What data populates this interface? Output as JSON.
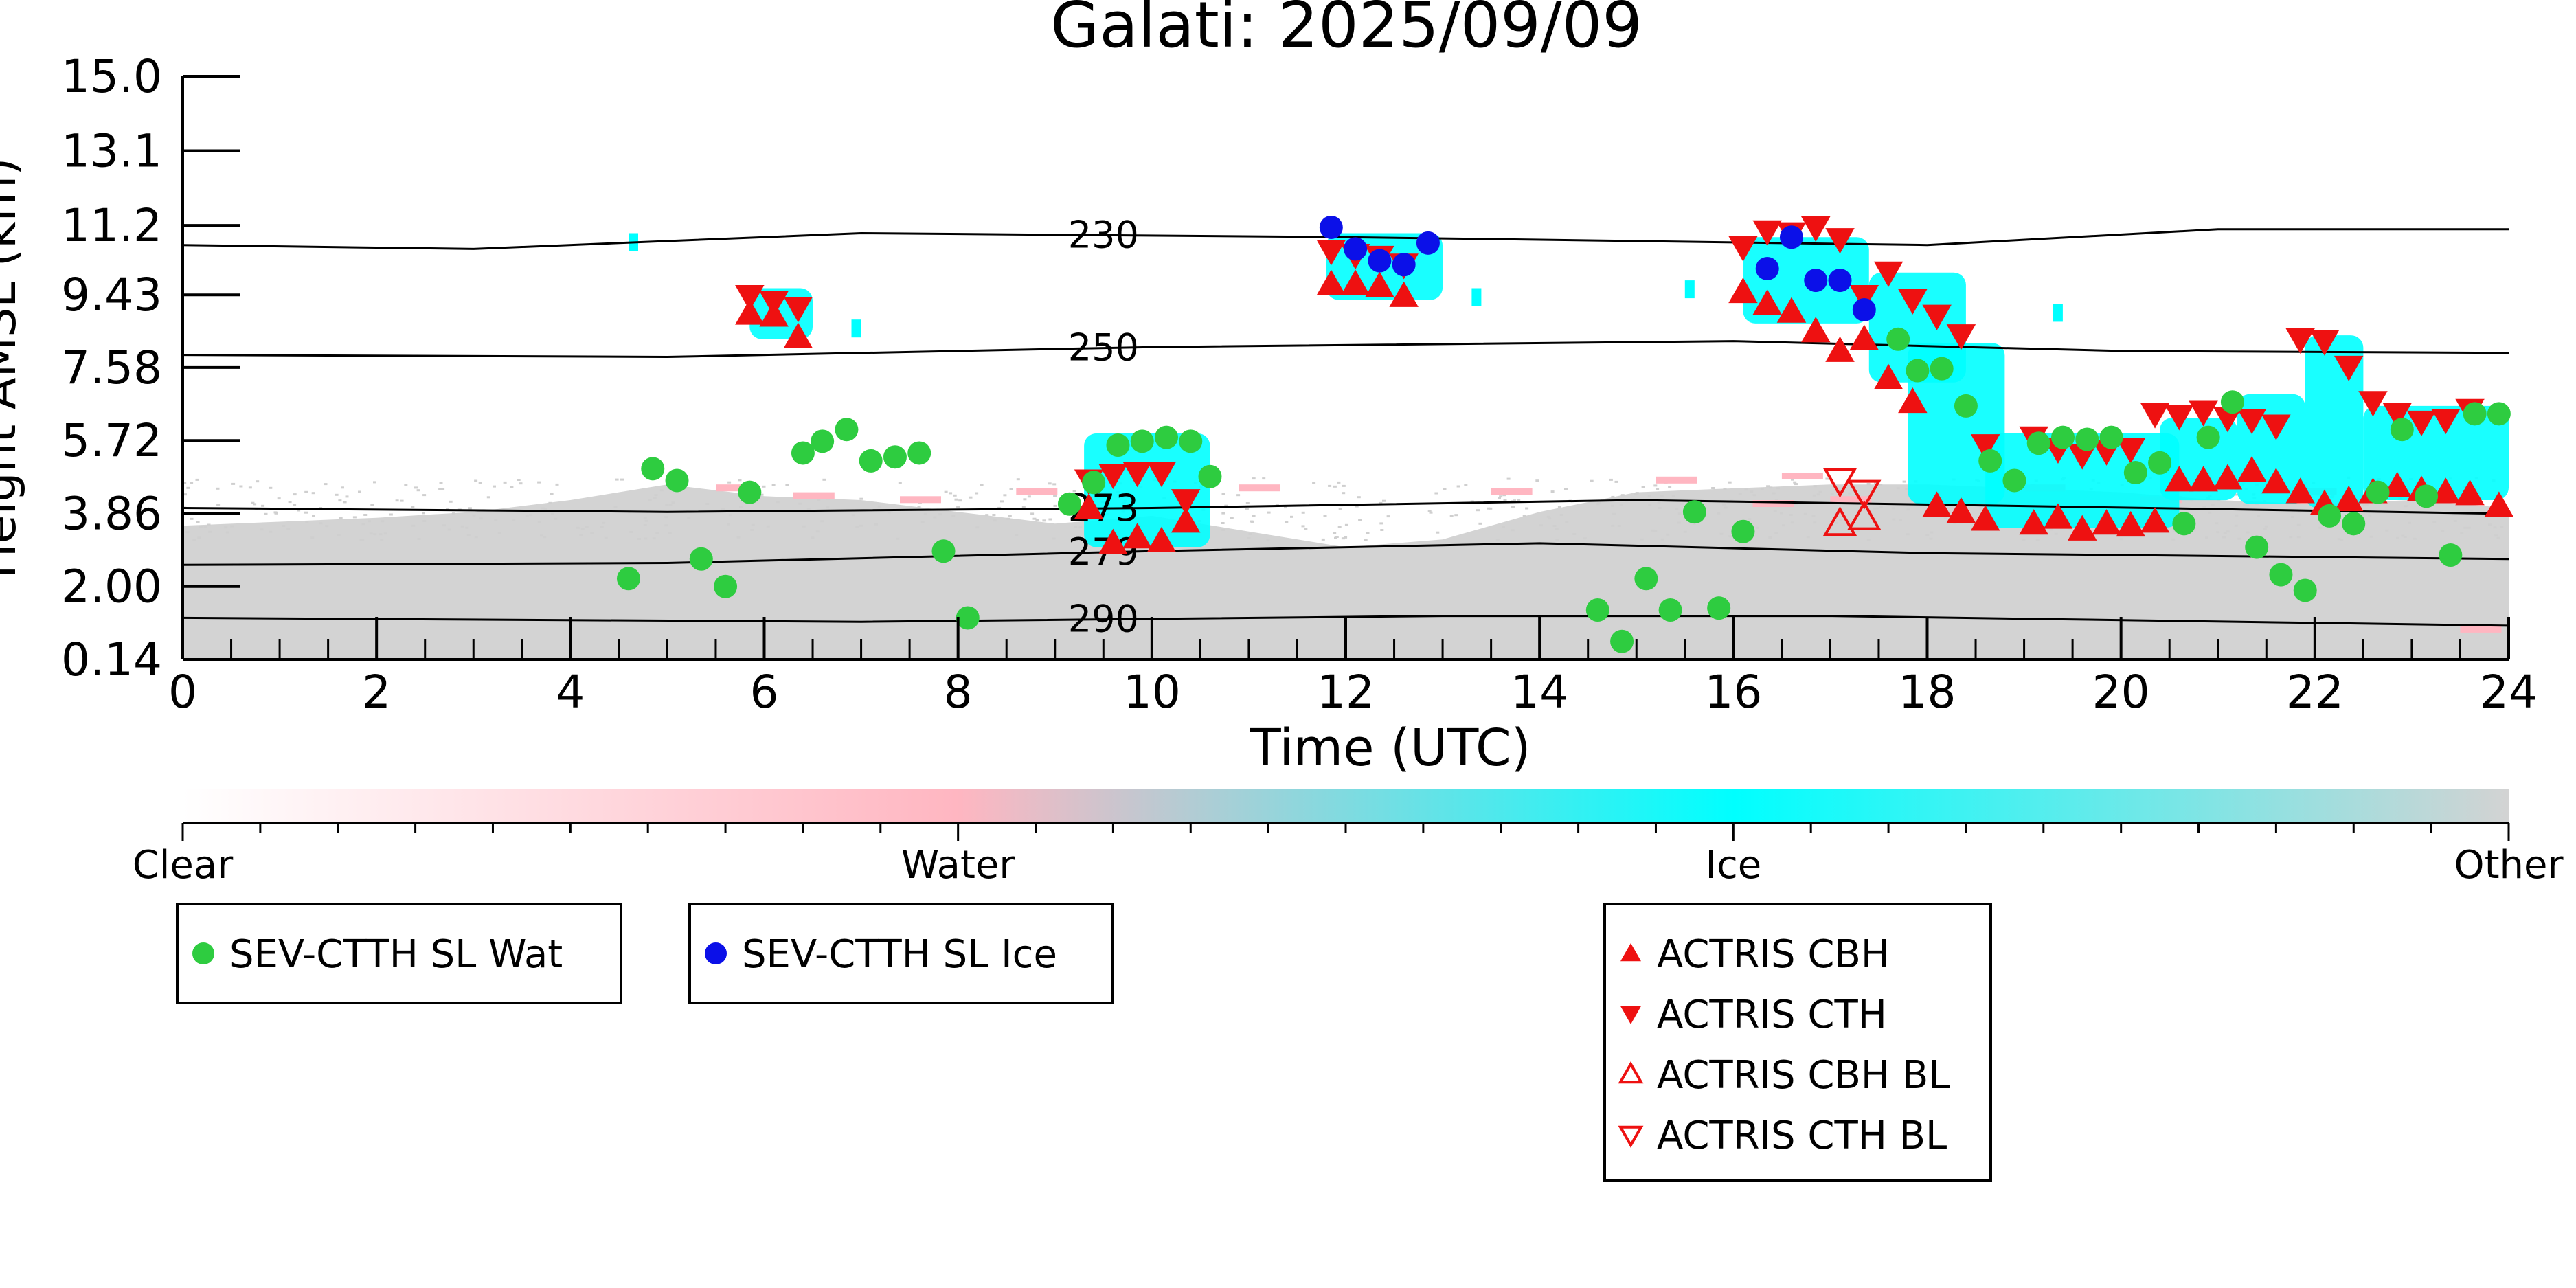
{
  "chart_data": {
    "type": "scatter",
    "title": "Galati: 2025/09/09",
    "xlabel": "Time (UTC)",
    "ylabel": "Height AMSL (km)",
    "xlim": [
      0,
      24
    ],
    "ylim": [
      0.14,
      15.0
    ],
    "xticks": [
      "0",
      "2",
      "4",
      "6",
      "8",
      "10",
      "12",
      "14",
      "16",
      "18",
      "20",
      "22",
      "24"
    ],
    "yticks": [
      "0.14",
      "2.00",
      "3.86",
      "5.72",
      "7.58",
      "9.43",
      "11.2",
      "13.1",
      "15.0"
    ],
    "ytick_values": [
      0.14,
      2.0,
      3.86,
      5.72,
      7.58,
      9.43,
      11.2,
      13.1,
      15.0
    ],
    "colorbar": {
      "labels": [
        "Clear",
        "Water",
        "Ice",
        "Other"
      ],
      "colors": [
        "#ffffff",
        "#ffb6c1",
        "#00ffff",
        "#d3d3d3"
      ]
    },
    "isotherms": [
      {
        "label": "230",
        "label_x": 9.5,
        "points": [
          [
            0,
            10.7
          ],
          [
            3,
            10.6
          ],
          [
            7,
            11.0
          ],
          [
            12,
            10.9
          ],
          [
            18,
            10.7
          ],
          [
            21,
            11.1
          ],
          [
            24,
            11.1
          ]
        ]
      },
      {
        "label": "250",
        "label_x": 9.5,
        "points": [
          [
            0,
            7.9
          ],
          [
            5,
            7.85
          ],
          [
            10,
            8.1
          ],
          [
            16,
            8.25
          ],
          [
            20,
            8.0
          ],
          [
            24,
            7.95
          ]
        ]
      },
      {
        "label": "273",
        "label_x": 9.5,
        "points": [
          [
            0,
            4.0
          ],
          [
            5,
            3.9
          ],
          [
            10,
            4.0
          ],
          [
            15,
            4.2
          ],
          [
            19,
            4.05
          ],
          [
            24,
            3.85
          ]
        ]
      },
      {
        "label": "279",
        "label_x": 9.5,
        "points": [
          [
            0,
            2.55
          ],
          [
            5,
            2.6
          ],
          [
            10,
            2.9
          ],
          [
            14,
            3.1
          ],
          [
            18,
            2.85
          ],
          [
            24,
            2.7
          ]
        ]
      },
      {
        "label": "290",
        "label_x": 9.5,
        "points": [
          [
            0,
            1.2
          ],
          [
            7,
            1.1
          ],
          [
            13,
            1.25
          ],
          [
            17,
            1.25
          ],
          [
            24,
            1.0
          ]
        ]
      }
    ],
    "colors": {
      "water": "#2ecc40",
      "ice": "#0b10e8",
      "actris": "#ee1111",
      "grey_cloud": "#d3d3d3",
      "cyan_cloud": "#00ffff",
      "pink_cloud": "#ffb6c1"
    },
    "legend_groups": [
      [
        "SEV-CTTH SL Wat"
      ],
      [
        "SEV-CTTH SL Ice"
      ],
      [
        "ACTRIS CBH",
        "ACTRIS CTH",
        "ACTRIS CBH BL",
        "ACTRIS CTH BL"
      ]
    ],
    "series": [
      {
        "name": "SEV-CTTH SL Wat",
        "marker": "circle",
        "color": "#2ecc40",
        "points": [
          [
            4.6,
            2.2
          ],
          [
            4.85,
            5.0
          ],
          [
            5.1,
            4.7
          ],
          [
            5.35,
            2.7
          ],
          [
            5.6,
            2.0
          ],
          [
            5.85,
            4.4
          ],
          [
            6.4,
            5.4
          ],
          [
            6.6,
            5.7
          ],
          [
            6.85,
            6.0
          ],
          [
            7.1,
            5.2
          ],
          [
            7.35,
            5.3
          ],
          [
            7.6,
            5.4
          ],
          [
            7.85,
            2.9
          ],
          [
            8.1,
            1.2
          ],
          [
            9.15,
            4.1
          ],
          [
            9.4,
            4.65
          ],
          [
            9.65,
            5.6
          ],
          [
            9.9,
            5.7
          ],
          [
            10.15,
            5.8
          ],
          [
            10.4,
            5.7
          ],
          [
            10.6,
            4.8
          ],
          [
            14.6,
            1.4
          ],
          [
            14.85,
            0.6
          ],
          [
            15.1,
            2.2
          ],
          [
            15.35,
            1.4
          ],
          [
            15.6,
            3.9
          ],
          [
            15.85,
            1.45
          ],
          [
            16.1,
            3.4
          ],
          [
            17.7,
            8.3
          ],
          [
            17.9,
            7.5
          ],
          [
            18.15,
            7.55
          ],
          [
            18.4,
            6.6
          ],
          [
            18.65,
            5.2
          ],
          [
            18.9,
            4.7
          ],
          [
            19.15,
            5.65
          ],
          [
            19.4,
            5.8
          ],
          [
            19.65,
            5.75
          ],
          [
            19.9,
            5.8
          ],
          [
            20.15,
            4.9
          ],
          [
            20.4,
            5.15
          ],
          [
            20.65,
            3.6
          ],
          [
            20.9,
            5.8
          ],
          [
            21.15,
            6.7
          ],
          [
            21.4,
            3.0
          ],
          [
            21.65,
            2.3
          ],
          [
            21.9,
            1.9
          ],
          [
            22.15,
            3.8
          ],
          [
            22.4,
            3.6
          ],
          [
            22.65,
            4.4
          ],
          [
            22.9,
            6.0
          ],
          [
            23.15,
            4.3
          ],
          [
            23.4,
            2.8
          ],
          [
            23.65,
            6.4
          ],
          [
            23.9,
            6.4
          ]
        ]
      },
      {
        "name": "SEV-CTTH SL Ice",
        "marker": "circle",
        "color": "#0b10e8",
        "points": [
          [
            11.85,
            11.15
          ],
          [
            12.1,
            10.6
          ],
          [
            12.35,
            10.3
          ],
          [
            12.6,
            10.2
          ],
          [
            12.85,
            10.75
          ],
          [
            16.35,
            10.1
          ],
          [
            16.6,
            10.9
          ],
          [
            16.85,
            9.8
          ],
          [
            17.1,
            9.8
          ],
          [
            17.35,
            9.05
          ]
        ]
      },
      {
        "name": "ACTRIS CBH",
        "marker": "triangle-up",
        "color": "#ee1111",
        "points": [
          [
            5.85,
            8.95
          ],
          [
            6.1,
            8.9
          ],
          [
            6.35,
            8.35
          ],
          [
            11.85,
            9.7
          ],
          [
            12.1,
            9.7
          ],
          [
            12.35,
            9.65
          ],
          [
            12.6,
            9.4
          ],
          [
            16.1,
            9.5
          ],
          [
            16.35,
            9.2
          ],
          [
            16.6,
            9.0
          ],
          [
            16.85,
            8.5
          ],
          [
            17.1,
            8.0
          ],
          [
            17.35,
            8.3
          ],
          [
            17.6,
            7.3
          ],
          [
            17.85,
            6.7
          ],
          [
            18.1,
            4.05
          ],
          [
            18.35,
            3.9
          ],
          [
            18.6,
            3.7
          ],
          [
            19.1,
            3.6
          ],
          [
            19.35,
            3.75
          ],
          [
            19.6,
            3.45
          ],
          [
            19.85,
            3.6
          ],
          [
            20.1,
            3.55
          ],
          [
            20.35,
            3.65
          ],
          [
            20.6,
            4.7
          ],
          [
            20.85,
            4.7
          ],
          [
            21.1,
            4.75
          ],
          [
            21.35,
            4.95
          ],
          [
            21.6,
            4.65
          ],
          [
            21.85,
            4.4
          ],
          [
            22.1,
            4.1
          ],
          [
            22.35,
            4.2
          ],
          [
            22.6,
            4.4
          ],
          [
            22.85,
            4.55
          ],
          [
            23.1,
            4.45
          ],
          [
            23.35,
            4.4
          ],
          [
            23.6,
            4.35
          ],
          [
            23.9,
            4.05
          ],
          [
            9.35,
            4.0
          ],
          [
            9.6,
            3.1
          ],
          [
            9.85,
            3.25
          ],
          [
            10.1,
            3.15
          ],
          [
            10.35,
            3.65
          ]
        ]
      },
      {
        "name": "ACTRIS CTH",
        "marker": "triangle-down",
        "color": "#ee1111",
        "points": [
          [
            5.85,
            9.4
          ],
          [
            6.1,
            9.25
          ],
          [
            6.35,
            9.1
          ],
          [
            11.85,
            10.55
          ],
          [
            12.1,
            10.45
          ],
          [
            12.35,
            10.4
          ],
          [
            12.6,
            10.2
          ],
          [
            16.1,
            10.65
          ],
          [
            16.35,
            11.05
          ],
          [
            16.6,
            11.0
          ],
          [
            16.85,
            11.15
          ],
          [
            17.1,
            10.85
          ],
          [
            17.35,
            9.4
          ],
          [
            17.6,
            10.0
          ],
          [
            17.85,
            9.3
          ],
          [
            18.1,
            8.9
          ],
          [
            18.35,
            8.4
          ],
          [
            18.6,
            5.6
          ],
          [
            19.1,
            5.8
          ],
          [
            19.35,
            5.5
          ],
          [
            19.6,
            5.35
          ],
          [
            19.85,
            5.45
          ],
          [
            20.1,
            5.5
          ],
          [
            20.35,
            6.4
          ],
          [
            20.6,
            6.35
          ],
          [
            20.85,
            6.45
          ],
          [
            21.1,
            6.3
          ],
          [
            21.35,
            6.25
          ],
          [
            21.6,
            6.1
          ],
          [
            21.85,
            8.3
          ],
          [
            22.1,
            8.25
          ],
          [
            22.35,
            7.6
          ],
          [
            22.6,
            6.7
          ],
          [
            22.85,
            6.4
          ],
          [
            23.1,
            6.2
          ],
          [
            23.35,
            6.25
          ],
          [
            23.6,
            6.5
          ],
          [
            9.35,
            4.7
          ],
          [
            9.6,
            4.85
          ],
          [
            9.85,
            4.9
          ],
          [
            10.1,
            4.9
          ],
          [
            10.35,
            4.2
          ]
        ]
      },
      {
        "name": "ACTRIS CBH BL",
        "marker": "triangle-up-open",
        "color": "#ee1111",
        "points": [
          [
            17.1,
            3.6
          ],
          [
            17.35,
            3.75
          ]
        ]
      },
      {
        "name": "ACTRIS CTH BL",
        "marker": "triangle-down-open",
        "color": "#ee1111",
        "points": [
          [
            17.1,
            4.7
          ],
          [
            17.35,
            4.4
          ]
        ]
      }
    ]
  }
}
